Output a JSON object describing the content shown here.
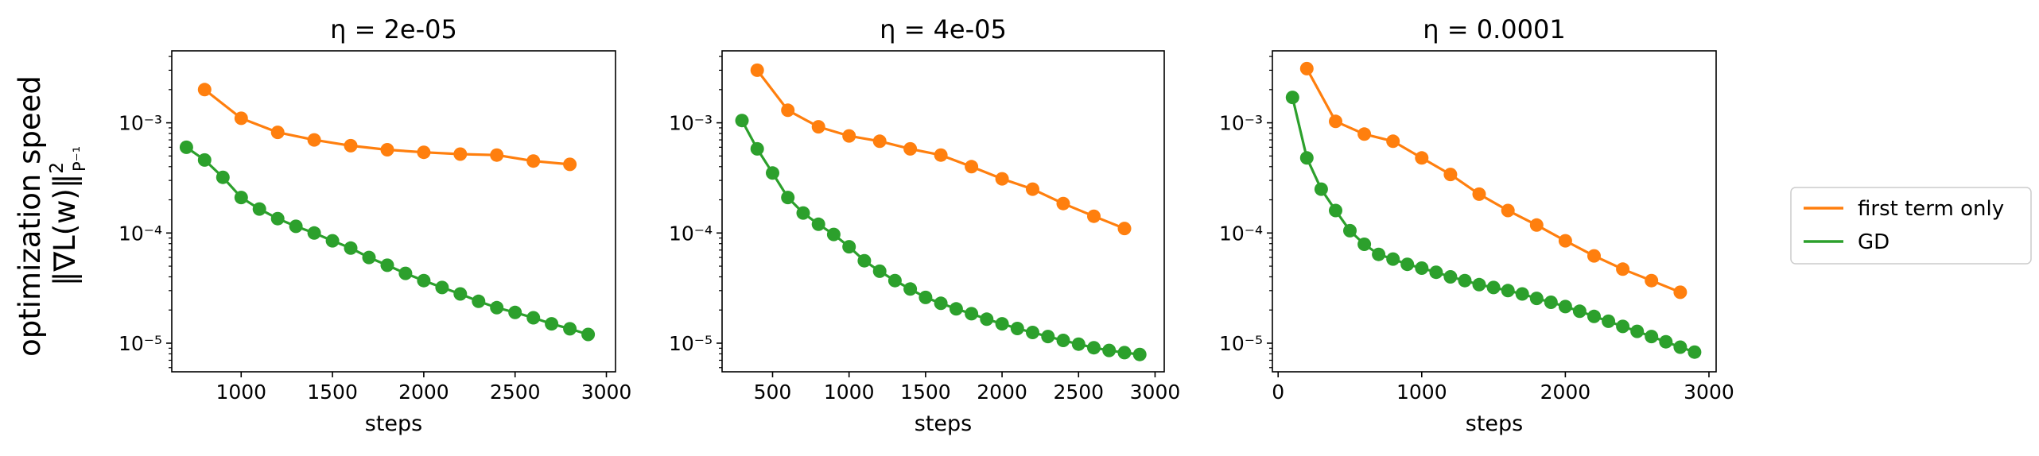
{
  "figure": {
    "ylabel_line1": "optimization speed",
    "ylabel_line2": "‖∇L(w)‖",
    "ylabel_sup": "2",
    "ylabel_sub": "P⁻¹"
  },
  "legend": {
    "placement": "right",
    "items": [
      {
        "label": "first term only",
        "color": "#ff7f0e"
      },
      {
        "label": "GD",
        "color": "#2ca02c"
      }
    ]
  },
  "chart_data": [
    {
      "type": "line",
      "title": "η = 2e-05",
      "xlabel": "steps",
      "yscale": "log",
      "xlim": [
        620,
        3050
      ],
      "ylim": [
        5.5e-06,
        0.0045
      ],
      "xticks": [
        1000,
        1500,
        2000,
        2500,
        3000
      ],
      "xtick_labels": [
        "1000",
        "1500",
        "2000",
        "2500",
        "3000"
      ],
      "yticks": [
        1e-05,
        0.0001,
        0.001
      ],
      "ytick_labels": [
        "10⁻⁵",
        "10⁻⁴",
        "10⁻³"
      ],
      "series": [
        {
          "name": "first term only",
          "color": "#ff7f0e",
          "x": [
            800,
            1000,
            1200,
            1400,
            1600,
            1800,
            2000,
            2200,
            2400,
            2600,
            2800
          ],
          "y": [
            0.002,
            0.0011,
            0.00082,
            0.0007,
            0.00062,
            0.00057,
            0.00054,
            0.00052,
            0.00051,
            0.00045,
            0.00042
          ]
        },
        {
          "name": "GD",
          "color": "#2ca02c",
          "x": [
            700,
            800,
            900,
            1000,
            1100,
            1200,
            1300,
            1400,
            1500,
            1600,
            1700,
            1800,
            1900,
            2000,
            2100,
            2200,
            2300,
            2400,
            2500,
            2600,
            2700,
            2800,
            2900
          ],
          "y": [
            0.0006,
            0.00046,
            0.00032,
            0.00021,
            0.000165,
            0.000135,
            0.000115,
            0.0001,
            8.5e-05,
            7.3e-05,
            6e-05,
            5.1e-05,
            4.3e-05,
            3.7e-05,
            3.2e-05,
            2.8e-05,
            2.4e-05,
            2.1e-05,
            1.9e-05,
            1.7e-05,
            1.5e-05,
            1.35e-05,
            1.2e-05
          ]
        }
      ]
    },
    {
      "type": "line",
      "title": "η = 4e-05",
      "xlabel": "steps",
      "yscale": "log",
      "xlim": [
        170,
        3060
      ],
      "ylim": [
        5.5e-06,
        0.0045
      ],
      "xticks": [
        500,
        1000,
        1500,
        2000,
        2500,
        3000
      ],
      "xtick_labels": [
        "500",
        "1000",
        "1500",
        "2000",
        "2500",
        "3000"
      ],
      "yticks": [
        1e-05,
        0.0001,
        0.001
      ],
      "ytick_labels": [
        "10⁻⁵",
        "10⁻⁴",
        "10⁻³"
      ],
      "series": [
        {
          "name": "first term only",
          "color": "#ff7f0e",
          "x": [
            400,
            600,
            800,
            1000,
            1200,
            1400,
            1600,
            1800,
            2000,
            2200,
            2400,
            2600,
            2800
          ],
          "y": [
            0.003,
            0.0013,
            0.00092,
            0.00076,
            0.00068,
            0.00058,
            0.00051,
            0.0004,
            0.00031,
            0.00025,
            0.000185,
            0.000142,
            0.00011
          ]
        },
        {
          "name": "GD",
          "color": "#2ca02c",
          "x": [
            300,
            400,
            500,
            600,
            700,
            800,
            900,
            1000,
            1100,
            1200,
            1300,
            1400,
            1500,
            1600,
            1700,
            1800,
            1900,
            2000,
            2100,
            2200,
            2300,
            2400,
            2500,
            2600,
            2700,
            2800,
            2900
          ],
          "y": [
            0.00105,
            0.00058,
            0.00035,
            0.00021,
            0.000152,
            0.00012,
            9.7e-05,
            7.5e-05,
            5.6e-05,
            4.5e-05,
            3.7e-05,
            3.1e-05,
            2.6e-05,
            2.3e-05,
            2.05e-05,
            1.85e-05,
            1.65e-05,
            1.5e-05,
            1.36e-05,
            1.25e-05,
            1.15e-05,
            1.06e-05,
            9.8e-06,
            9.1e-06,
            8.6e-06,
            8.2e-06,
            7.9e-06
          ]
        }
      ]
    },
    {
      "type": "line",
      "title": "η = 0.0001",
      "xlabel": "steps",
      "yscale": "log",
      "xlim": [
        -40,
        3050
      ],
      "ylim": [
        5.5e-06,
        0.0045
      ],
      "xticks": [
        0,
        1000,
        2000,
        3000
      ],
      "xtick_labels": [
        "0",
        "1000",
        "2000",
        "3000"
      ],
      "yticks": [
        1e-05,
        0.0001,
        0.001
      ],
      "ytick_labels": [
        "10⁻⁵",
        "10⁻⁴",
        "10⁻³"
      ],
      "series": [
        {
          "name": "first term only",
          "color": "#ff7f0e",
          "x": [
            200,
            400,
            600,
            800,
            1000,
            1200,
            1400,
            1600,
            1800,
            2000,
            2200,
            2400,
            2600,
            2800
          ],
          "y": [
            0.0031,
            0.00103,
            0.00079,
            0.00068,
            0.00048,
            0.00034,
            0.000225,
            0.00016,
            0.000118,
            8.5e-05,
            6.2e-05,
            4.7e-05,
            3.7e-05,
            2.9e-05
          ]
        },
        {
          "name": "GD",
          "color": "#2ca02c",
          "x": [
            100,
            200,
            300,
            400,
            500,
            600,
            700,
            800,
            900,
            1000,
            1100,
            1200,
            1300,
            1400,
            1500,
            1600,
            1700,
            1800,
            1900,
            2000,
            2100,
            2200,
            2300,
            2400,
            2500,
            2600,
            2700,
            2800,
            2900
          ],
          "y": [
            0.0017,
            0.00048,
            0.00025,
            0.00016,
            0.000105,
            7.9e-05,
            6.4e-05,
            5.8e-05,
            5.2e-05,
            4.8e-05,
            4.4e-05,
            4e-05,
            3.7e-05,
            3.4e-05,
            3.2e-05,
            3e-05,
            2.8e-05,
            2.55e-05,
            2.35e-05,
            2.15e-05,
            1.95e-05,
            1.75e-05,
            1.58e-05,
            1.42e-05,
            1.28e-05,
            1.15e-05,
            1.03e-05,
            9.2e-06,
            8.3e-06
          ]
        }
      ]
    }
  ]
}
